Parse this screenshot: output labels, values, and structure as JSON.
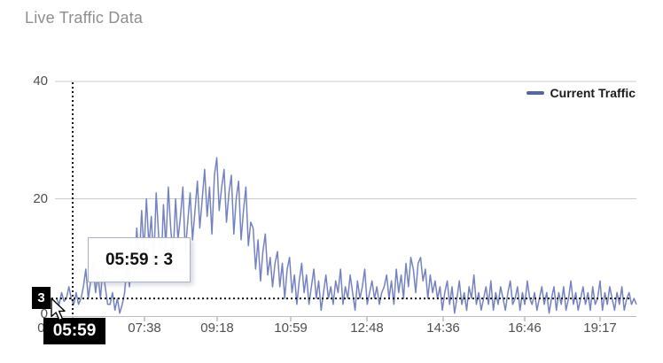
{
  "title": "Live Traffic Data",
  "legend": {
    "label": "Current Traffic",
    "swatch_color": "#5565ab"
  },
  "tooltip": {
    "text": "05:59 : 3"
  },
  "crosshair": {
    "x_label": "05:59",
    "y_label": "3",
    "time": "05:59",
    "value": 3
  },
  "colors": {
    "series": "#7483c0",
    "grid": "#cbcbcb",
    "axis_line": "#bdbdbd",
    "axis_text": "#4f4f4f",
    "title_text": "#8e8e8e",
    "crosshair_dots": "#151515",
    "badge_bg": "#000000",
    "badge_text": "#ffffff",
    "tooltip_border": "#a9b2c9"
  },
  "chart_data": {
    "type": "line",
    "title": "Live Traffic Data",
    "xlabel": "",
    "ylabel": "",
    "ylim": [
      0,
      40
    ],
    "y_ticks": [
      0,
      20,
      40
    ],
    "x_tick_labels": [
      "05:59",
      "07:38",
      "09:18",
      "10:59",
      "12:48",
      "14:36",
      "16:46",
      "19:17"
    ],
    "grid": "horizontal",
    "legend_position": "top-right",
    "hover_point": {
      "x": "05:59",
      "y": 3
    },
    "series": [
      {
        "name": "Current Traffic",
        "color": "#7483c0",
        "values": [
          3,
          2,
          4,
          2.5,
          3,
          5,
          3,
          2,
          4,
          2,
          3,
          5,
          8,
          3,
          6,
          9,
          4,
          7,
          3,
          8,
          5,
          2,
          2,
          4,
          1,
          3,
          0.5,
          2,
          4,
          9,
          5,
          12,
          7,
          15,
          9,
          18,
          11,
          20,
          12,
          17,
          9,
          21,
          14,
          8,
          19,
          12,
          22,
          15,
          10,
          20,
          13,
          17,
          22,
          11,
          16,
          21,
          13,
          18,
          23,
          15,
          20,
          25,
          17,
          22,
          14,
          24,
          27,
          18,
          22,
          25,
          16,
          21,
          24,
          14,
          20,
          23,
          13,
          18,
          22,
          12,
          16,
          15,
          8,
          13,
          6,
          11,
          14,
          7,
          10,
          5,
          9,
          11,
          5,
          9,
          3,
          8,
          10,
          4,
          7,
          2,
          6,
          9,
          4,
          7,
          2,
          5,
          8,
          3,
          6,
          1,
          4,
          7,
          3,
          5,
          2,
          6,
          4,
          8,
          2,
          5,
          3,
          7,
          4,
          1,
          6,
          3,
          5,
          8,
          2,
          4,
          6,
          3,
          5,
          2,
          4,
          5,
          7,
          3,
          6,
          2,
          8,
          4,
          7,
          3,
          9,
          5,
          10,
          8,
          4,
          9,
          10,
          6,
          8,
          3,
          7,
          4,
          6,
          3,
          5,
          1,
          4,
          6,
          2,
          5,
          0.5,
          3,
          6,
          2,
          4,
          1,
          5,
          3,
          7,
          2,
          4,
          1,
          3,
          5,
          2,
          6,
          1,
          4,
          2,
          5,
          3,
          1,
          4,
          6,
          2,
          3,
          5,
          1,
          4,
          2,
          6,
          3,
          2,
          4,
          1,
          3,
          5,
          2,
          4,
          0.5,
          3,
          5,
          1,
          4,
          2,
          5,
          1,
          3,
          6,
          2,
          4,
          1,
          3,
          5,
          2,
          4,
          1,
          5,
          2,
          3,
          6,
          1,
          4,
          2,
          5,
          3,
          1,
          4,
          2,
          5,
          1,
          3,
          4,
          2,
          3,
          2
        ]
      }
    ]
  }
}
